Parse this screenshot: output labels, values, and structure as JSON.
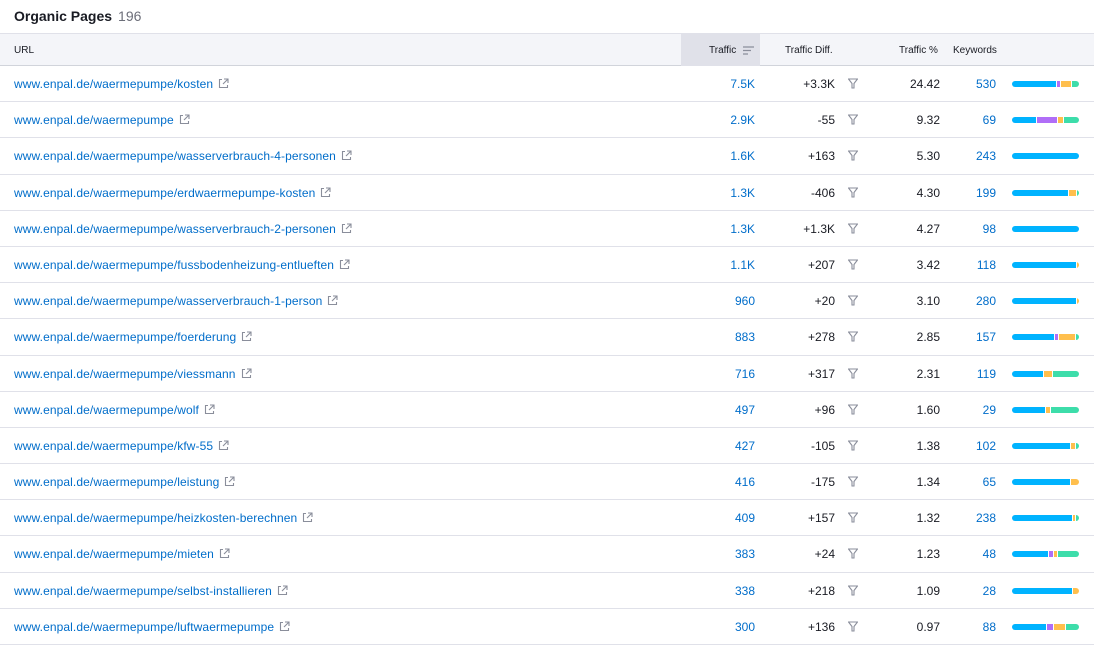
{
  "title": "Organic Pages",
  "count": "196",
  "colors": {
    "blue": "#00b3ff",
    "purple": "#b06ef7",
    "yellow": "#ffbf4d",
    "green": "#3dddaa",
    "link": "#006dca"
  },
  "columns": {
    "url": "URL",
    "traffic": "Traffic",
    "traffic_diff": "Traffic Diff.",
    "traffic_pct": "Traffic %",
    "keywords": "Keywords"
  },
  "rows": [
    {
      "url": "www.enpal.de/waermepumpe/kosten",
      "traffic": "7.5K",
      "diff": "+3.3K",
      "pct": "24.42",
      "kw": "530",
      "dist": [
        66,
        4,
        15,
        10
      ]
    },
    {
      "url": "www.enpal.de/waermepumpe",
      "traffic": "2.9K",
      "diff": "-55",
      "pct": "9.32",
      "kw": "69",
      "dist": [
        36,
        30,
        7,
        23
      ]
    },
    {
      "url": "www.enpal.de/waermepumpe/wasserverbrauch-4-personen",
      "traffic": "1.6K",
      "diff": "+163",
      "pct": "5.30",
      "kw": "243",
      "dist": [
        100,
        0,
        0,
        0
      ]
    },
    {
      "url": "www.enpal.de/waermepumpe/erdwaermepumpe-kosten",
      "traffic": "1.3K",
      "diff": "-406",
      "pct": "4.30",
      "kw": "199",
      "dist": [
        85,
        0,
        10,
        3
      ]
    },
    {
      "url": "www.enpal.de/waermepumpe/wasserverbrauch-2-personen",
      "traffic": "1.3K",
      "diff": "+1.3K",
      "pct": "4.27",
      "kw": "98",
      "dist": [
        100,
        0,
        0,
        0
      ]
    },
    {
      "url": "www.enpal.de/waermepumpe/fussbodenheizung-entlueften",
      "traffic": "1.1K",
      "diff": "+207",
      "pct": "3.42",
      "kw": "118",
      "dist": [
        95,
        0,
        3,
        0
      ]
    },
    {
      "url": "www.enpal.de/waermepumpe/wasserverbrauch-1-person",
      "traffic": "960",
      "diff": "+20",
      "pct": "3.10",
      "kw": "280",
      "dist": [
        96,
        0,
        3,
        0
      ]
    },
    {
      "url": "www.enpal.de/waermepumpe/foerderung",
      "traffic": "883",
      "diff": "+278",
      "pct": "2.85",
      "kw": "157",
      "dist": [
        63,
        4,
        24,
        5
      ]
    },
    {
      "url": "www.enpal.de/waermepumpe/viessmann",
      "traffic": "716",
      "diff": "+317",
      "pct": "2.31",
      "kw": "119",
      "dist": [
        46,
        0,
        12,
        39
      ]
    },
    {
      "url": "www.enpal.de/waermepumpe/wolf",
      "traffic": "497",
      "diff": "+96",
      "pct": "1.60",
      "kw": "29",
      "dist": [
        49,
        0,
        6,
        42
      ]
    },
    {
      "url": "www.enpal.de/waermepumpe/kfw-55",
      "traffic": "427",
      "diff": "-105",
      "pct": "1.38",
      "kw": "102",
      "dist": [
        88,
        0,
        6,
        4
      ]
    },
    {
      "url": "www.enpal.de/waermepumpe/leistung",
      "traffic": "416",
      "diff": "-175",
      "pct": "1.34",
      "kw": "65",
      "dist": [
        87,
        0,
        12,
        0
      ]
    },
    {
      "url": "www.enpal.de/waermepumpe/heizkosten-berechnen",
      "traffic": "409",
      "diff": "+157",
      "pct": "1.32",
      "kw": "238",
      "dist": [
        88,
        0,
        4,
        4
      ]
    },
    {
      "url": "www.enpal.de/waermepumpe/mieten",
      "traffic": "383",
      "diff": "+24",
      "pct": "1.23",
      "kw": "48",
      "dist": [
        54,
        6,
        4,
        31
      ]
    },
    {
      "url": "www.enpal.de/waermepumpe/selbst-installieren",
      "traffic": "338",
      "diff": "+218",
      "pct": "1.09",
      "kw": "28",
      "dist": [
        90,
        0,
        9,
        0
      ]
    },
    {
      "url": "www.enpal.de/waermepumpe/luftwaermepumpe",
      "traffic": "300",
      "diff": "+136",
      "pct": "0.97",
      "kw": "88",
      "dist": [
        51,
        9,
        18,
        19
      ]
    }
  ]
}
